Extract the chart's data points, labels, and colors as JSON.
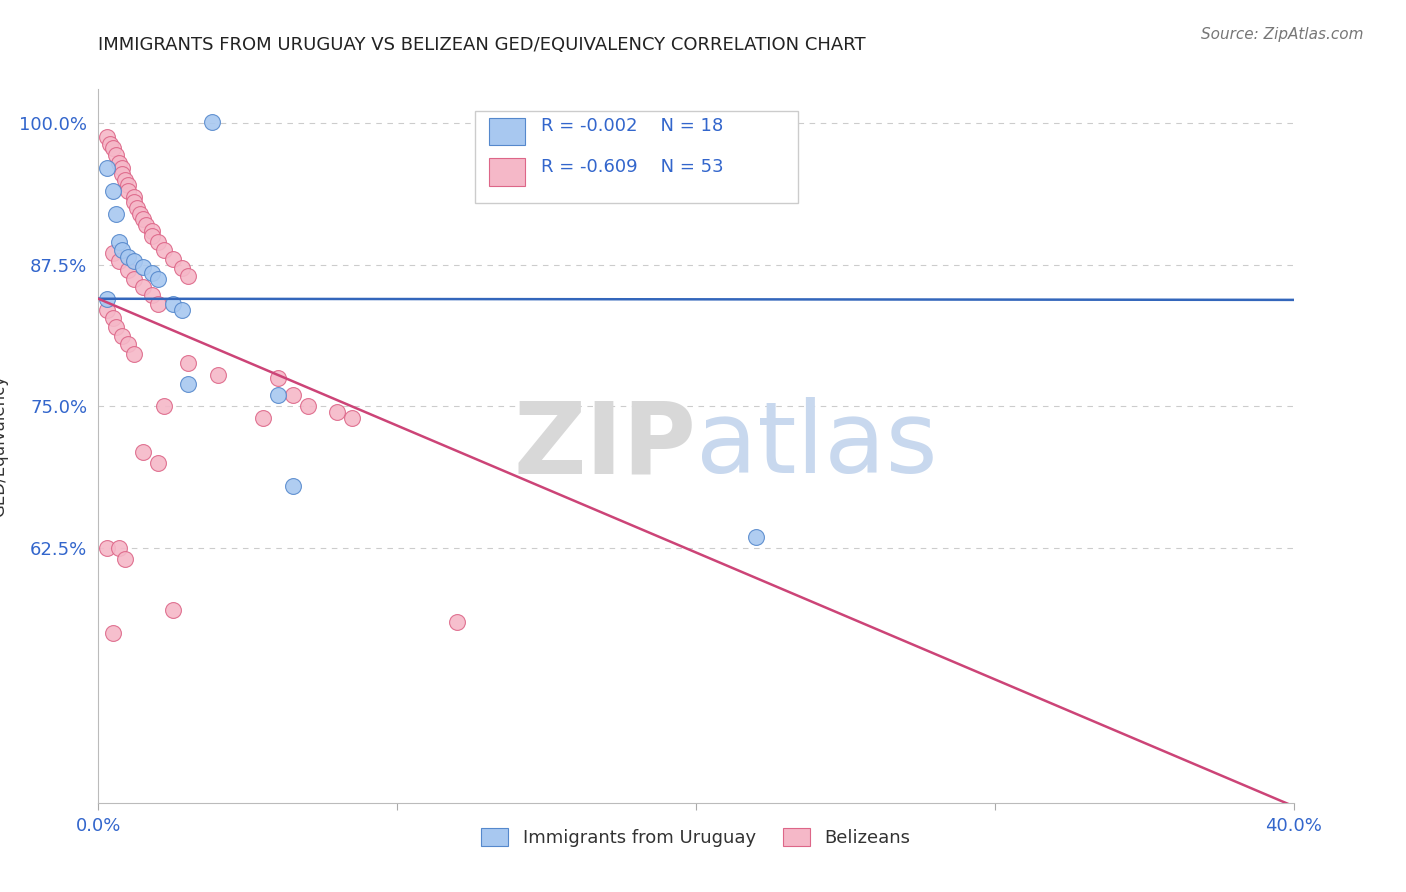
{
  "title": "IMMIGRANTS FROM URUGUAY VS BELIZEAN GED/EQUIVALENCY CORRELATION CHART",
  "source": "Source: ZipAtlas.com",
  "ylabel": "GED/Equivalency",
  "xlim": [
    0.0,
    0.4
  ],
  "ylim": [
    0.4,
    1.03
  ],
  "xticks": [
    0.0,
    0.1,
    0.2,
    0.3,
    0.4
  ],
  "xtick_labels": [
    "0.0%",
    "",
    "",
    "",
    "40.0%"
  ],
  "ytick_positions": [
    1.0,
    0.875,
    0.75,
    0.625
  ],
  "ytick_labels": [
    "100.0%",
    "87.5%",
    "75.0%",
    "62.5%"
  ],
  "blue_R": "-0.002",
  "blue_N": "18",
  "pink_R": "-0.609",
  "pink_N": "53",
  "blue_color": "#a8c8f0",
  "pink_color": "#f5b8c8",
  "blue_edge_color": "#5588cc",
  "pink_edge_color": "#dd6688",
  "blue_line_color": "#3366bb",
  "pink_line_color": "#cc4477",
  "blue_line_y0": 0.845,
  "blue_line_y1": 0.844,
  "pink_line_y0": 0.845,
  "pink_line_y1": 0.397,
  "blue_scatter_x": [
    0.003,
    0.005,
    0.006,
    0.007,
    0.008,
    0.01,
    0.012,
    0.015,
    0.018,
    0.02,
    0.025,
    0.028,
    0.03,
    0.06,
    0.065,
    0.22,
    0.003,
    0.038
  ],
  "blue_scatter_y": [
    0.96,
    0.94,
    0.92,
    0.895,
    0.888,
    0.882,
    0.878,
    0.873,
    0.868,
    0.862,
    0.84,
    0.835,
    0.77,
    0.76,
    0.68,
    0.635,
    0.845,
    1.001
  ],
  "pink_scatter_x": [
    0.003,
    0.004,
    0.005,
    0.006,
    0.007,
    0.008,
    0.008,
    0.009,
    0.01,
    0.01,
    0.012,
    0.012,
    0.013,
    0.014,
    0.015,
    0.016,
    0.018,
    0.018,
    0.02,
    0.022,
    0.025,
    0.028,
    0.03,
    0.005,
    0.007,
    0.01,
    0.012,
    0.015,
    0.018,
    0.02,
    0.003,
    0.005,
    0.006,
    0.008,
    0.01,
    0.012,
    0.03,
    0.04,
    0.003,
    0.022,
    0.055,
    0.06,
    0.065,
    0.07,
    0.08,
    0.085,
    0.015,
    0.02,
    0.025,
    0.12,
    0.005,
    0.007,
    0.009
  ],
  "pink_scatter_y": [
    0.988,
    0.982,
    0.978,
    0.972,
    0.965,
    0.96,
    0.955,
    0.95,
    0.945,
    0.94,
    0.935,
    0.93,
    0.925,
    0.92,
    0.915,
    0.91,
    0.905,
    0.9,
    0.895,
    0.888,
    0.88,
    0.872,
    0.865,
    0.885,
    0.878,
    0.87,
    0.862,
    0.855,
    0.848,
    0.84,
    0.835,
    0.828,
    0.82,
    0.812,
    0.805,
    0.796,
    0.788,
    0.778,
    0.625,
    0.75,
    0.74,
    0.775,
    0.76,
    0.75,
    0.745,
    0.74,
    0.71,
    0.7,
    0.57,
    0.56,
    0.55,
    0.625,
    0.615
  ],
  "watermark_zip": "ZIP",
  "watermark_atlas": "atlas",
  "background_color": "#ffffff",
  "grid_color": "#cccccc",
  "title_color": "#222222",
  "axis_color": "#3366cc",
  "label_color": "#333333"
}
